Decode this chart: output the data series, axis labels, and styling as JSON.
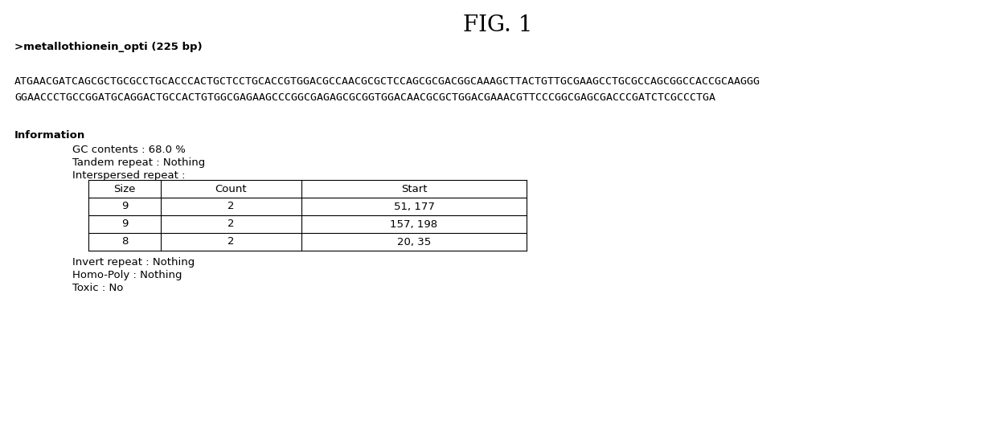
{
  "title": "FIG. 1",
  "header_label": ">metallothionein_opti (225 bp)",
  "seq_line1": "ATGAACGATCAGCGCTGCGCCTGCACCCACTGCTCCTGCACCGTGGACGCCAACGCGCTCCAGCGCGACGGCAAAGCTTACTGTTGCGAAGCCTGCGCCAGCGGCCACCGCAAGGG",
  "seq_line2": "GGAACCCTGCCGGATGCAGGACTGCCACTGTGGCGAGAAGCCCGGCGAGAGCGCGGTGGACAACGCGCTGGACGAAACGTTCCCGGCGAGCGACCCGATCTCGCCCTGA",
  "info_label": "Information",
  "gc_contents": "GC contents : 68.0 %",
  "tandem_repeat": "Tandem repeat : Nothing",
  "interspersed_repeat": "Interspersed repeat :",
  "table_headers": [
    "Size",
    "Count",
    "Start"
  ],
  "table_rows": [
    [
      "9",
      "2",
      "51, 177"
    ],
    [
      "9",
      "2",
      "157, 198"
    ],
    [
      "8",
      "2",
      "20, 35"
    ]
  ],
  "invert_repeat": "Invert repeat : Nothing",
  "homo_poly": "Homo-Poly : Nothing",
  "toxic": "Toxic : No",
  "bg_color": "#ffffff",
  "text_color": "#000000",
  "font_size_title": 20,
  "font_size_header": 9.5,
  "font_size_seq": 9.5,
  "font_size_info": 9.5,
  "font_size_table": 9.5,
  "fig_width": 12.39,
  "fig_height": 5.34,
  "dpi": 100
}
